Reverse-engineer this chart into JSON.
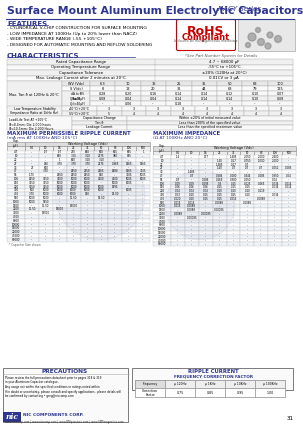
{
  "title": "Surface Mount Aluminum Electrolytic Capacitors",
  "series": "NACY Series",
  "header_color": "#2d3590",
  "bg_color": "#ffffff",
  "features": [
    "- CYLINDRICAL V-CHIP CONSTRUCTION FOR SURFACE MOUNTING",
    "- LOW IMPEDANCE AT 100KHz (Up to 20% lower than NACZ)",
    "- WIDE TEMPERATURE RANGE (-55 +105°C)",
    "- DESIGNED FOR AUTOMATIC MOUNTING AND REFLOW SOLDERING"
  ],
  "char_rows": [
    [
      "Rated Capacitance Range",
      "4.7 ~ 68000 μF"
    ],
    [
      "Operating Temperature Range",
      "-55°C to +105°C"
    ],
    [
      "Capacitance Tolerance",
      "±20% (120Hz at 20°C)"
    ],
    [
      "Max. Leakage Current after 2 minutes at 20°C",
      "0.01CV or 3 μA"
    ]
  ],
  "volt_labels": [
    "6.3",
    "10",
    "16",
    "25",
    "35",
    "50",
    "63",
    "100"
  ],
  "surge_vals": [
    "8",
    "13",
    "20",
    "32",
    "44",
    "63",
    "79",
    "125"
  ],
  "tan_subrows": [
    [
      "dA to Φ5",
      [
        "0.28",
        "0.20",
        "0.16",
        "0.14",
        "0.14",
        "0.12",
        "0.10",
        "0.07"
      ]
    ],
    [
      "Cy(≤40μF)",
      [
        "0.08",
        "0.04",
        "0.04",
        "0.14",
        "0.14",
        "0.14",
        "0.10",
        "0.08"
      ]
    ],
    [
      "Cy(>40μF)",
      [
        "--",
        "0.06",
        "--",
        "0.18",
        "--",
        "--",
        "--",
        "--"
      ]
    ]
  ],
  "lts_rows": [
    [
      "-40°C/+20°C",
      [
        "3",
        "3",
        "3",
        "3",
        "3",
        "3",
        "3",
        "3"
      ]
    ],
    [
      "-55°C/+20°C",
      [
        "5",
        "4",
        "4",
        "4",
        "4",
        "4",
        "4",
        "4"
      ]
    ]
  ],
  "ripple_caps": [
    "4.7",
    "10",
    "22",
    "27",
    "33",
    "47",
    "56",
    "100",
    "150",
    "220",
    "330",
    "470",
    "560",
    "1000",
    "1500",
    "2200",
    "3300",
    "4700",
    "6800",
    "10000",
    "15000",
    "22000",
    "47000",
    "68000"
  ],
  "ripple_data": [
    [
      "--",
      "1/7",
      "1/7",
      "270",
      "860",
      "960",
      "965",
      "865",
      "1"
    ],
    [
      "--",
      "--",
      "860",
      "3.10",
      "3.10",
      "2175",
      "380",
      "815",
      "--"
    ],
    [
      "--",
      "--",
      "1",
      "960",
      "3.10",
      "3.10",
      "--",
      "--",
      "--"
    ],
    [
      "--",
      "940",
      "3.70",
      "3.70",
      "3.70",
      "2175",
      "0.965",
      "1465",
      "1465"
    ],
    [
      "27",
      "960",
      "--",
      "--",
      "--",
      "--",
      "--",
      "--",
      "--"
    ],
    [
      "--",
      "3.70",
      "--",
      "2650",
      "2150",
      "2265",
      "2680",
      "1465",
      "3205"
    ],
    [
      "1.70",
      "--",
      "2650",
      "2650",
      "2650",
      "940",
      "--",
      "3205",
      "5005"
    ],
    [
      "2650",
      "3650",
      "3600",
      "5000",
      "6000",
      "4000",
      "4000",
      "5005",
      "8005"
    ],
    [
      "3650",
      "3650",
      "5000",
      "5000",
      "5000",
      "--",
      "5000",
      "8005",
      "--"
    ],
    [
      "3650",
      "3650",
      "5000",
      "5000",
      "5000",
      "5000",
      "5495",
      "--",
      "--"
    ],
    [
      "800",
      "5000",
      "6000",
      "6000",
      "6000",
      "8000",
      "--",
      "8005",
      "--"
    ],
    [
      "3.70",
      "5000",
      "6000",
      "6000",
      "940",
      "--",
      "3.14.50",
      "--",
      "--"
    ],
    [
      "5000",
      "5000",
      "--",
      "3.11.50",
      "--",
      "3.14.50",
      "--",
      "--",
      "--"
    ],
    [
      "5000",
      "5950",
      "--",
      "--",
      "--",
      "--",
      "--",
      "--",
      "--"
    ],
    [
      "--",
      "3.11.50",
      "--",
      "3.19000",
      "--",
      "--",
      "--",
      "--",
      "--"
    ],
    [
      "3.11.50",
      "--",
      "3.19000",
      "--",
      "--",
      "--",
      "--",
      "--",
      "--"
    ],
    [
      "--",
      "3.19000",
      "--",
      "--",
      "--",
      "--",
      "--",
      "--",
      "--"
    ],
    [
      "--",
      "--",
      "--",
      "--",
      "--",
      "--",
      "--",
      "--",
      "--"
    ],
    [
      "--",
      "--",
      "--",
      "--",
      "--",
      "--",
      "--",
      "--",
      "--"
    ],
    [
      "--",
      "--",
      "--",
      "--",
      "--",
      "--",
      "--",
      "--",
      "--"
    ],
    [
      "--",
      "--",
      "--",
      "--",
      "--",
      "--",
      "--",
      "--",
      "--"
    ],
    [
      "--",
      "--",
      "--",
      "--",
      "--",
      "--",
      "--",
      "--",
      "--"
    ],
    [
      "--",
      "--",
      "--",
      "--",
      "--",
      "--",
      "--",
      "--",
      "--"
    ],
    [
      "--",
      "--",
      "--",
      "--",
      "--",
      "--",
      "--",
      "--",
      "--"
    ]
  ],
  "rc_volt_labels": [
    "5.0",
    "10",
    "16",
    "25",
    "35",
    "50",
    "63",
    "100",
    "500"
  ],
  "imp_caps": [
    "4.7",
    "10",
    "22",
    "27",
    "33",
    "47",
    "56",
    "100",
    "150",
    "220",
    "330",
    "470",
    "560",
    "1000",
    "1500",
    "2200",
    "3300",
    "4700",
    "6800",
    "10000",
    "15000",
    "22000",
    "47000",
    "68000"
  ],
  "imp_volt_labels": [
    "5.0",
    "10",
    "16",
    "25",
    "35",
    "50",
    "63",
    "100",
    "500"
  ],
  "freq_labels": [
    "μ 120Hz",
    "μ 1KHz",
    "μ 10KHz",
    "μ 100KHz"
  ],
  "freq_vals": [
    "0.75",
    "0.85",
    "0.95",
    "1.00"
  ],
  "page_num": "31"
}
